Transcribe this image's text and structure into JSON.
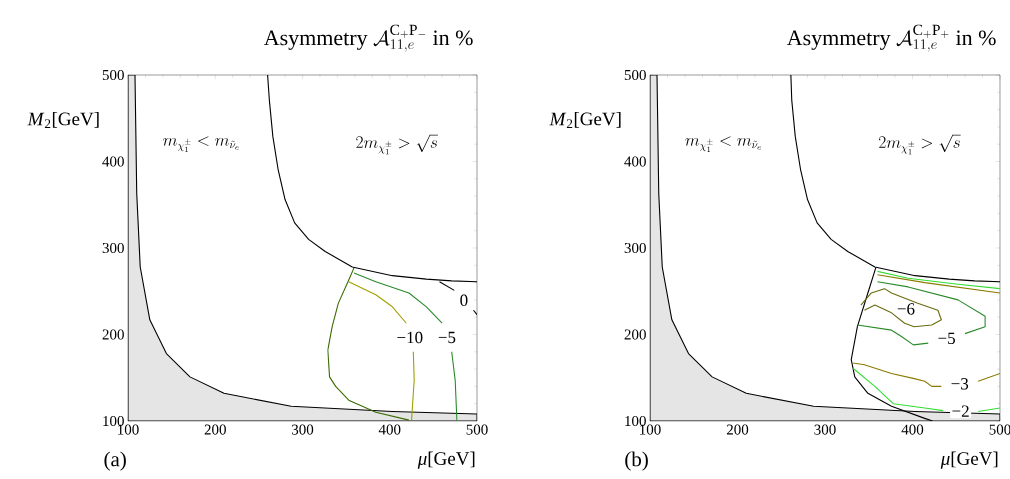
{
  "chart_data": [
    {
      "type": "line",
      "title": "\\mbox{Asymmetry }\\mathcal{A}_{11,e}^{\\mathrm{C}_+\\mathrm{P}_-}\\mbox{ in }\\%",
      "xlabel": "*μ*[GeV]",
      "ylabel": "*M*$_{2}$[GeV]",
      "xlim": [
        100,
        500
      ],
      "ylim": [
        100,
        500
      ],
      "xticks": [
        100,
        200,
        300,
        400,
        500
      ],
      "yticks": [
        100,
        200,
        300,
        400,
        500
      ],
      "annotations": [
        "(a)",
        "m_{\\chi_1^\\pm}<m_{\\tilde{\\nu}_e}",
        "2m_{\\chi_1^\\pm}>\\sqrt{s}"
      ],
      "series": [
        {
          "type": "area",
          "color": "#e5e5e5",
          "x": [
            100,
            108,
            110,
            114,
            125,
            144,
            171,
            210,
            287,
            403,
            500
          ],
          "values": [
            500,
            500,
            363,
            278,
            217,
            178,
            151,
            132,
            117,
            111,
            108
          ]
        },
        {
          "color": "#000000",
          "x": [
            260,
            262,
            266,
            272,
            280,
            291,
            307,
            326,
            357,
            403,
            442,
            471,
            500
          ],
          "values": [
            500,
            471,
            429,
            391,
            356,
            329,
            310,
            296,
            278,
            268,
            264,
            262,
            261
          ]
        },
        {
          "name": "0",
          "color": "#000000",
          "x": [
            457,
            474,
            null,
            496,
            500
          ],
          "values": [
            261,
            251,
            null,
            228,
            223
          ]
        },
        {
          "color": "#3a6a00",
          "x": [
            359,
            353,
            341,
            334,
            329,
            331,
            338,
            353,
            384,
            422
          ],
          "values": [
            277,
            263,
            236,
            209,
            182,
            151,
            140,
            124,
            110,
            101
          ]
        },
        {
          "name": "−10",
          "color": "#a0a000",
          "x": [
            425,
            428,
            427,
            null,
            419,
            403,
            384,
            353
          ],
          "values": [
            101,
            147,
            180,
            null,
            213,
            232,
            246,
            261
          ]
        },
        {
          "name": "−5",
          "color": "#2a8a2a",
          "x": [
            359,
            384,
            422,
            442,
            460,
            null,
            471,
            475,
            477
          ],
          "values": [
            271,
            261,
            248,
            232,
            213,
            null,
            180,
            147,
            100
          ]
        }
      ]
    },
    {
      "type": "line",
      "title": "\\mbox{Asymmetry }\\mathcal{A}_{11,e}^{\\mathrm{C}_+\\mathrm{P}_+}\\mbox{ in }\\%",
      "xlabel": "*μ*[GeV]",
      "ylabel": "*M*$_{2}$[GeV]",
      "xlim": [
        100,
        500
      ],
      "ylim": [
        100,
        500
      ],
      "xticks": [
        100,
        200,
        300,
        400,
        500
      ],
      "yticks": [
        100,
        200,
        300,
        400,
        500
      ],
      "annotations": [
        "(b)",
        "m_{\\chi_1^\\pm}<m_{\\tilde{\\nu}_e}",
        "2m_{\\chi_1^\\pm}>\\sqrt{s}"
      ],
      "series": [
        {
          "type": "area",
          "color": "#e5e5e5",
          "x": [
            100,
            108,
            110,
            114,
            125,
            144,
            171,
            210,
            287,
            403,
            500
          ],
          "values": [
            500,
            500,
            363,
            278,
            217,
            178,
            151,
            132,
            117,
            111,
            108
          ]
        },
        {
          "color": "#000000",
          "x": [
            261,
            262,
            266,
            272,
            280,
            291,
            307,
            326,
            357,
            403,
            442,
            471,
            500,
            null,
            358,
            349,
            337,
            330,
            334,
            349,
            376,
            414,
            423
          ],
          "values": [
            500,
            471,
            429,
            391,
            356,
            329,
            310,
            296,
            278,
            268,
            264,
            262,
            261,
            null,
            277,
            248,
            209,
            171,
            151,
            132,
            117,
            103,
            100
          ]
        },
        {
          "color": "#33dd33",
          "x": [
            360,
            395,
            452,
            500
          ],
          "values": [
            273,
            265,
            258,
            253
          ]
        },
        {
          "color": "#8a7a00",
          "x": [
            360,
            414,
            500
          ],
          "values": [
            269,
            260,
            248
          ]
        },
        {
          "name": "−5",
          "color": "#2a8a2a",
          "x": [
            360,
            395,
            452,
            483,
            483,
            460,
            null,
            418,
            401,
            387,
            376,
            337
          ],
          "values": [
            261,
            255,
            240,
            221,
            209,
            201,
            null,
            190,
            188,
            198,
            205,
            211
          ]
        },
        {
          "name": "−6",
          "color": "#6b6b10",
          "x": [
            341,
            353,
            368,
            376,
            406,
            429,
            433,
            422,
            402,
            391,
            376,
            357,
            345
          ],
          "values": [
            234,
            248,
            253,
            248,
            236,
            228,
            217,
            211,
            209,
            213,
            225,
            234,
            228
          ]
        },
        {
          "name": "−3",
          "color": "#8a7a00",
          "x": [
            332,
            345,
            376,
            402,
            414,
            422,
            433,
            null,
            475,
            500
          ],
          "values": [
            167,
            165,
            155,
            149,
            146,
            140,
            140,
            null,
            146,
            155
          ]
        },
        {
          "name": "−2",
          "color": "#33dd33",
          "x": [
            332,
            357,
            378,
            414,
            435,
            null,
            475,
            500
          ],
          "values": [
            161,
            140,
            120,
            115,
            112,
            null,
            111,
            115
          ]
        }
      ]
    }
  ]
}
